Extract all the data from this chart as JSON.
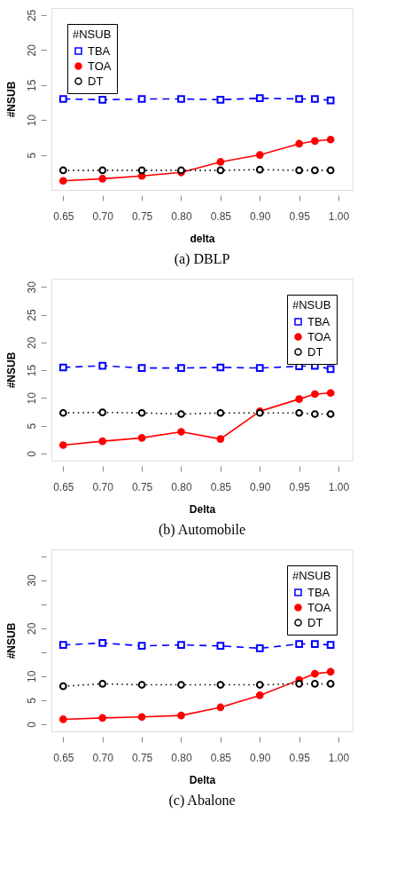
{
  "chart_data": [
    {
      "type": "line",
      "title": "(a)  DBLP",
      "xlabel": "delta",
      "ylabel": "#NSUB",
      "legend_title": "#NSUB",
      "legend": "top left",
      "grid": false,
      "x": [
        0.65,
        0.7,
        0.75,
        0.8,
        0.85,
        0.9,
        0.95,
        0.97,
        0.99
      ],
      "xlim": [
        0.635,
        1.018
      ],
      "xticks": [
        {
          "value": 0.65,
          "label": "0.65"
        },
        {
          "value": 0.7,
          "label": "0.70"
        },
        {
          "value": 0.75,
          "label": "0.75"
        },
        {
          "value": 0.8,
          "label": "0.80"
        },
        {
          "value": 0.85,
          "label": "0.85"
        },
        {
          "value": 0.9,
          "label": "0.90"
        },
        {
          "value": 0.95,
          "label": "0.95"
        },
        {
          "value": 1.0,
          "label": "1.00"
        }
      ],
      "ylim": [
        0,
        26
      ],
      "yticks": [
        5,
        10,
        15,
        20,
        25
      ],
      "series": [
        {
          "name": "TBA",
          "color": "#0000ff",
          "marker": "square",
          "line_style": "dashed",
          "values": [
            13.0,
            12.9,
            13.0,
            13.0,
            12.9,
            13.1,
            13.0,
            13.0,
            12.8
          ]
        },
        {
          "name": "TOA",
          "color": "#ff0000",
          "marker": "circle",
          "line_style": "solid",
          "values": [
            1.3,
            1.6,
            2.0,
            2.5,
            4.0,
            5.0,
            6.6,
            7.0,
            7.2
          ]
        },
        {
          "name": "DT",
          "color": "#000000",
          "marker": "circle",
          "line_style": "dotted",
          "values": [
            2.8,
            2.8,
            2.8,
            2.8,
            2.8,
            2.9,
            2.8,
            2.8,
            2.8
          ]
        }
      ]
    },
    {
      "type": "line",
      "title": "(b)  Automobile",
      "xlabel": "Delta",
      "ylabel": "#NSUB",
      "legend_title": "#NSUB",
      "legend": "top right",
      "grid": false,
      "x": [
        0.65,
        0.7,
        0.75,
        0.8,
        0.85,
        0.9,
        0.95,
        0.97,
        0.99
      ],
      "xlim": [
        0.635,
        1.018
      ],
      "xticks": [
        {
          "value": 0.65,
          "label": "0.65"
        },
        {
          "value": 0.7,
          "label": "0.70"
        },
        {
          "value": 0.75,
          "label": "0.75"
        },
        {
          "value": 0.8,
          "label": "0.80"
        },
        {
          "value": 0.85,
          "label": "0.85"
        },
        {
          "value": 0.9,
          "label": "0.90"
        },
        {
          "value": 0.95,
          "label": "0.95"
        },
        {
          "value": 1.0,
          "label": "1.00"
        }
      ],
      "ylim": [
        -1.3,
        31.5
      ],
      "yticks": [
        0,
        5,
        10,
        15,
        20,
        25,
        30
      ],
      "series": [
        {
          "name": "TBA",
          "color": "#0000ff",
          "marker": "square",
          "line_style": "dashed",
          "values": [
            15.5,
            15.8,
            15.4,
            15.4,
            15.5,
            15.4,
            15.7,
            15.8,
            15.2
          ]
        },
        {
          "name": "TOA",
          "color": "#ff0000",
          "marker": "circle",
          "line_style": "solid",
          "values": [
            1.5,
            2.2,
            2.8,
            3.9,
            2.6,
            7.6,
            9.8,
            10.7,
            10.9
          ]
        },
        {
          "name": "DT",
          "color": "#000000",
          "marker": "circle",
          "line_style": "dotted",
          "values": [
            7.3,
            7.4,
            7.3,
            7.1,
            7.3,
            7.3,
            7.3,
            7.1,
            7.1
          ]
        }
      ]
    },
    {
      "type": "line",
      "title": "(c)  Abalone",
      "xlabel": "Delta",
      "ylabel": "#NSUB",
      "legend_title": "#NSUB",
      "legend": "top right",
      "grid": false,
      "x": [
        0.65,
        0.7,
        0.75,
        0.8,
        0.85,
        0.9,
        0.95,
        0.97,
        0.99
      ],
      "xlim": [
        0.635,
        1.018
      ],
      "xticks": [
        {
          "value": 0.65,
          "label": "0.65"
        },
        {
          "value": 0.7,
          "label": "0.70"
        },
        {
          "value": 0.75,
          "label": "0.75"
        },
        {
          "value": 0.8,
          "label": "0.80"
        },
        {
          "value": 0.85,
          "label": "0.85"
        },
        {
          "value": 0.9,
          "label": "0.90"
        },
        {
          "value": 0.95,
          "label": "0.95"
        },
        {
          "value": 1.0,
          "label": "1.00"
        }
      ],
      "ylim": [
        -1.5,
        36.4
      ],
      "yticks": [
        0,
        5,
        10,
        {
          "value": 15,
          "label": null
        },
        20,
        {
          "value": 25,
          "label": null
        },
        30,
        {
          "value": 35,
          "label": null
        }
      ],
      "series": [
        {
          "name": "TBA",
          "color": "#0000ff",
          "marker": "square",
          "line_style": "dashed",
          "values": [
            16.5,
            16.9,
            16.3,
            16.5,
            16.3,
            15.8,
            16.7,
            16.7,
            16.5
          ]
        },
        {
          "name": "TOA",
          "color": "#ff0000",
          "marker": "circle",
          "line_style": "solid",
          "values": [
            1.0,
            1.3,
            1.5,
            1.8,
            3.5,
            6.0,
            9.2,
            10.5,
            10.9
          ]
        },
        {
          "name": "DT",
          "color": "#000000",
          "marker": "circle",
          "line_style": "dotted",
          "values": [
            7.9,
            8.4,
            8.2,
            8.2,
            8.2,
            8.2,
            8.4,
            8.4,
            8.4
          ]
        }
      ]
    }
  ]
}
